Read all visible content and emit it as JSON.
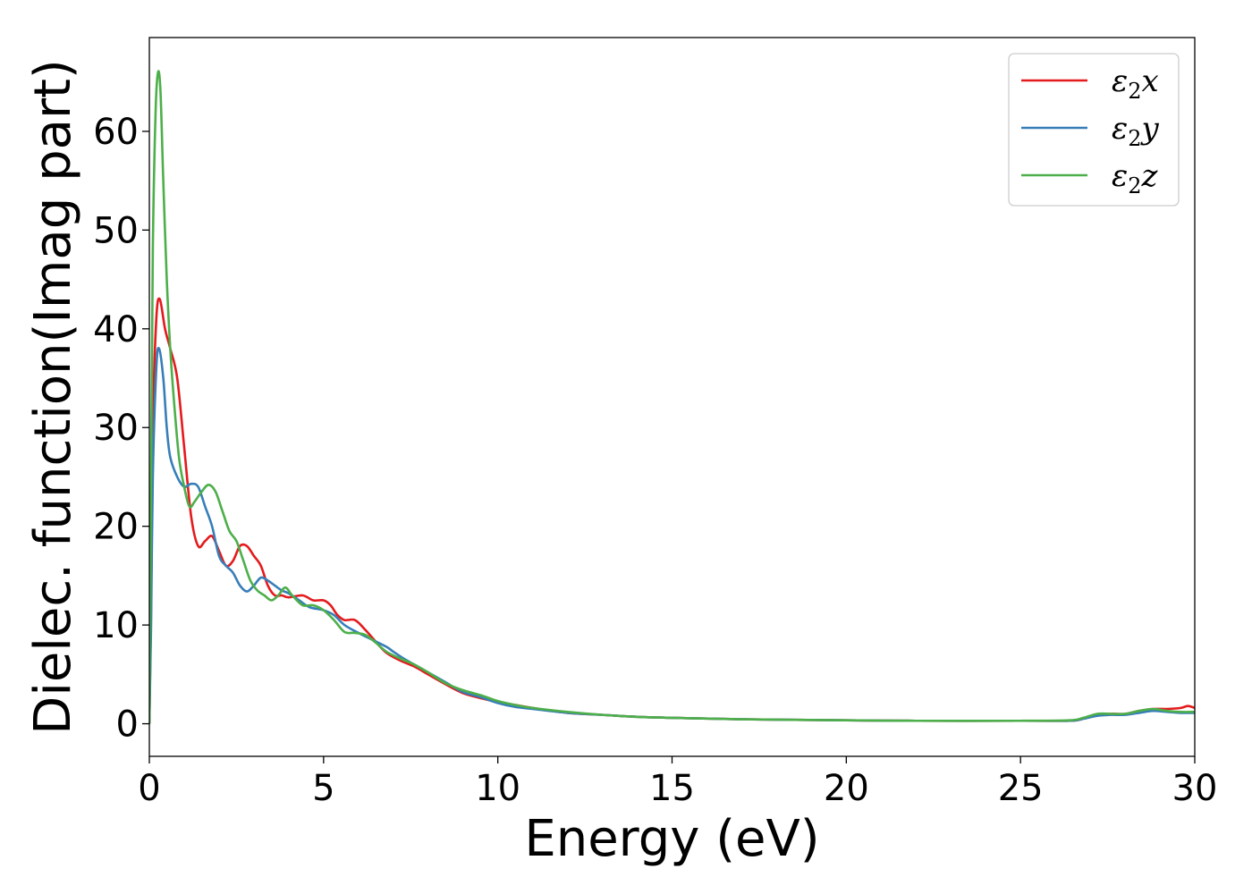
{
  "chart_data": {
    "type": "line",
    "title": "",
    "xlabel": "Energy (eV)",
    "ylabel": "Dielec. function(Imag part)",
    "xlim": [
      0,
      30
    ],
    "ylim": [
      -3.3,
      69.5
    ],
    "xticks": [
      0,
      5,
      10,
      15,
      20,
      25,
      30
    ],
    "yticks": [
      0,
      10,
      20,
      30,
      40,
      50,
      60
    ],
    "grid": false,
    "legend_position": "top-right",
    "series": [
      {
        "name": "ε2x",
        "legend": {
          "symbol": "ε",
          "sub": "2",
          "axis": "x"
        },
        "color": "#e41a1c",
        "points": [
          [
            0,
            0
          ],
          [
            0.05,
            12
          ],
          [
            0.1,
            30
          ],
          [
            0.2,
            41
          ],
          [
            0.3,
            43
          ],
          [
            0.45,
            40
          ],
          [
            0.6,
            38
          ],
          [
            0.8,
            35
          ],
          [
            1.0,
            28
          ],
          [
            1.2,
            21
          ],
          [
            1.4,
            18
          ],
          [
            1.6,
            18.5
          ],
          [
            1.8,
            19
          ],
          [
            2.0,
            17.5
          ],
          [
            2.2,
            16
          ],
          [
            2.4,
            16.5
          ],
          [
            2.6,
            18
          ],
          [
            2.8,
            18
          ],
          [
            3.0,
            17
          ],
          [
            3.2,
            16
          ],
          [
            3.4,
            14
          ],
          [
            3.6,
            13
          ],
          [
            3.8,
            13
          ],
          [
            4.0,
            12.8
          ],
          [
            4.4,
            13
          ],
          [
            4.7,
            12.5
          ],
          [
            5.0,
            12.5
          ],
          [
            5.2,
            12.0
          ],
          [
            5.4,
            11.0
          ],
          [
            5.6,
            10.5
          ],
          [
            5.9,
            10.5
          ],
          [
            6.2,
            9.5
          ],
          [
            6.5,
            8.3
          ],
          [
            6.8,
            7.2
          ],
          [
            7.2,
            6.4
          ],
          [
            7.6,
            5.8
          ],
          [
            8.0,
            5.0
          ],
          [
            8.5,
            4.0
          ],
          [
            9.0,
            3.1
          ],
          [
            9.5,
            2.6
          ],
          [
            10.0,
            2.2
          ],
          [
            10.5,
            1.9
          ],
          [
            11.0,
            1.6
          ],
          [
            12.0,
            1.1
          ],
          [
            13.0,
            0.9
          ],
          [
            14.0,
            0.7
          ],
          [
            15.0,
            0.6
          ],
          [
            17.0,
            0.45
          ],
          [
            20.0,
            0.35
          ],
          [
            22.0,
            0.3
          ],
          [
            25.0,
            0.3
          ],
          [
            26.4,
            0.3
          ],
          [
            26.8,
            0.5
          ],
          [
            27.2,
            0.9
          ],
          [
            27.6,
            1.0
          ],
          [
            28.0,
            1.0
          ],
          [
            28.4,
            1.3
          ],
          [
            28.8,
            1.5
          ],
          [
            29.2,
            1.5
          ],
          [
            29.6,
            1.6
          ],
          [
            29.8,
            1.8
          ],
          [
            30.0,
            1.6
          ]
        ]
      },
      {
        "name": "ε2y",
        "legend": {
          "symbol": "ε",
          "sub": "2",
          "axis": "y"
        },
        "color": "#377eb8",
        "points": [
          [
            0,
            0
          ],
          [
            0.05,
            10
          ],
          [
            0.1,
            25
          ],
          [
            0.2,
            36
          ],
          [
            0.28,
            38
          ],
          [
            0.4,
            35
          ],
          [
            0.5,
            30
          ],
          [
            0.6,
            27
          ],
          [
            0.8,
            25
          ],
          [
            1.0,
            24
          ],
          [
            1.2,
            24.3
          ],
          [
            1.4,
            24
          ],
          [
            1.6,
            22
          ],
          [
            1.8,
            20
          ],
          [
            2.0,
            17
          ],
          [
            2.2,
            16
          ],
          [
            2.4,
            15.3
          ],
          [
            2.6,
            14
          ],
          [
            2.8,
            13.4
          ],
          [
            3.0,
            14
          ],
          [
            3.2,
            14.8
          ],
          [
            3.4,
            14.5
          ],
          [
            3.6,
            14
          ],
          [
            3.8,
            13.5
          ],
          [
            4.0,
            13.2
          ],
          [
            4.3,
            12.5
          ],
          [
            4.6,
            11.8
          ],
          [
            5.0,
            11.5
          ],
          [
            5.3,
            11
          ],
          [
            5.6,
            10
          ],
          [
            6.0,
            9.2
          ],
          [
            6.4,
            8.5
          ],
          [
            6.8,
            7.8
          ],
          [
            7.0,
            7.3
          ],
          [
            7.3,
            6.6
          ],
          [
            7.6,
            6.0
          ],
          [
            8.0,
            5.2
          ],
          [
            8.5,
            4.2
          ],
          [
            9.0,
            3.2
          ],
          [
            9.5,
            2.7
          ],
          [
            10.0,
            2.1
          ],
          [
            10.5,
            1.7
          ],
          [
            11.0,
            1.5
          ],
          [
            12.0,
            1.1
          ],
          [
            13.0,
            0.9
          ],
          [
            14.0,
            0.7
          ],
          [
            15.0,
            0.6
          ],
          [
            17.0,
            0.45
          ],
          [
            20.0,
            0.35
          ],
          [
            22.0,
            0.3
          ],
          [
            25.0,
            0.3
          ],
          [
            26.4,
            0.3
          ],
          [
            26.8,
            0.5
          ],
          [
            27.2,
            0.8
          ],
          [
            27.6,
            0.9
          ],
          [
            28.0,
            0.9
          ],
          [
            28.4,
            1.1
          ],
          [
            28.8,
            1.3
          ],
          [
            29.2,
            1.2
          ],
          [
            29.6,
            1.1
          ],
          [
            30.0,
            1.1
          ]
        ]
      },
      {
        "name": "ε2z",
        "legend": {
          "symbol": "ε",
          "sub": "2",
          "axis": "z"
        },
        "color": "#4daf4a",
        "points": [
          [
            0,
            0
          ],
          [
            0.05,
            25
          ],
          [
            0.1,
            48
          ],
          [
            0.18,
            62
          ],
          [
            0.25,
            66
          ],
          [
            0.32,
            64
          ],
          [
            0.4,
            55
          ],
          [
            0.5,
            45
          ],
          [
            0.6,
            38
          ],
          [
            0.7,
            33
          ],
          [
            0.85,
            27
          ],
          [
            1.0,
            24
          ],
          [
            1.15,
            22
          ],
          [
            1.3,
            22.5
          ],
          [
            1.5,
            23.5
          ],
          [
            1.7,
            24.2
          ],
          [
            1.9,
            23.5
          ],
          [
            2.1,
            21.5
          ],
          [
            2.3,
            19.5
          ],
          [
            2.5,
            18.5
          ],
          [
            2.7,
            16.5
          ],
          [
            2.9,
            14.5
          ],
          [
            3.1,
            13.5
          ],
          [
            3.3,
            13
          ],
          [
            3.5,
            12.5
          ],
          [
            3.7,
            13
          ],
          [
            3.9,
            13.8
          ],
          [
            4.1,
            13
          ],
          [
            4.4,
            12
          ],
          [
            4.7,
            12
          ],
          [
            5.0,
            11.5
          ],
          [
            5.3,
            10.5
          ],
          [
            5.6,
            9.3
          ],
          [
            5.9,
            9.2
          ],
          [
            6.2,
            9
          ],
          [
            6.5,
            8.2
          ],
          [
            6.8,
            7.3
          ],
          [
            7.2,
            6.6
          ],
          [
            7.6,
            6.0
          ],
          [
            8.0,
            5.2
          ],
          [
            8.5,
            4.1
          ],
          [
            9.0,
            3.4
          ],
          [
            9.5,
            2.9
          ],
          [
            10.0,
            2.3
          ],
          [
            10.5,
            1.9
          ],
          [
            11.0,
            1.6
          ],
          [
            12.0,
            1.2
          ],
          [
            13.0,
            0.9
          ],
          [
            14.0,
            0.7
          ],
          [
            15.0,
            0.6
          ],
          [
            17.0,
            0.45
          ],
          [
            20.0,
            0.35
          ],
          [
            22.0,
            0.3
          ],
          [
            25.0,
            0.3
          ],
          [
            26.4,
            0.35
          ],
          [
            26.8,
            0.6
          ],
          [
            27.2,
            1.0
          ],
          [
            27.6,
            1.0
          ],
          [
            28.0,
            1.0
          ],
          [
            28.4,
            1.3
          ],
          [
            28.8,
            1.5
          ],
          [
            29.2,
            1.3
          ],
          [
            29.6,
            1.2
          ],
          [
            30.0,
            1.2
          ]
        ]
      }
    ]
  }
}
